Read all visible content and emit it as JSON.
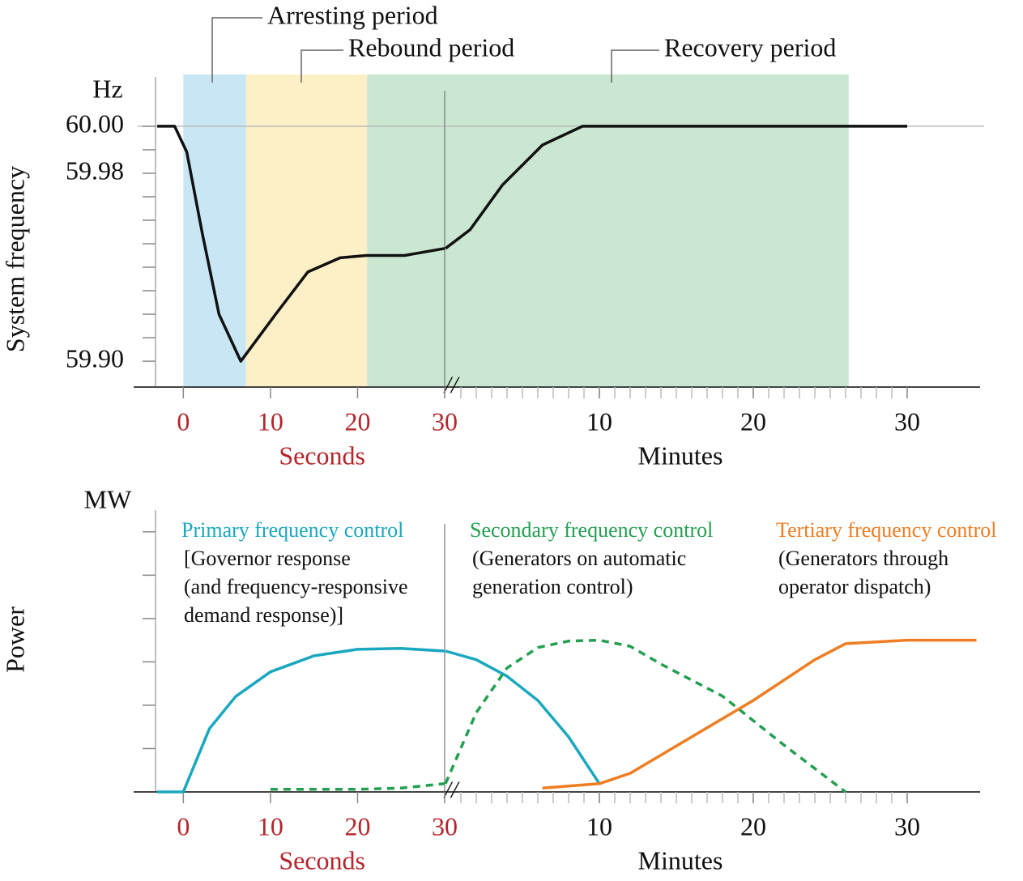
{
  "chart_data": [
    {
      "type": "line",
      "ylabel": "System frequency",
      "yunit": "Hz",
      "ylim": [
        59.889,
        60.021
      ],
      "yticks": [
        {
          "value": 60,
          "label": "60.00"
        },
        {
          "value": 59.98,
          "label": "59.98"
        },
        {
          "value": 59.9,
          "label": "59.90"
        }
      ],
      "yminorticks": [
        59.99,
        59.97,
        59.96,
        59.95,
        59.94,
        59.93,
        59.92,
        59.91
      ],
      "hlines": [
        60
      ],
      "xaxes": [
        {
          "name": "Seconds",
          "color": "#b5252b",
          "xlim": [
            -3.1,
            30
          ],
          "xticks": [
            0,
            10,
            20,
            30
          ]
        },
        {
          "name": "Minutes",
          "color": "#111111",
          "xlim": [
            0,
            35
          ],
          "xticks": [
            10,
            20,
            30
          ],
          "xminorticks": [
            1,
            2,
            3,
            4,
            5,
            6,
            7,
            8,
            9,
            10,
            11,
            12,
            13,
            14,
            15,
            16,
            17,
            18,
            19,
            20,
            21,
            22,
            23,
            24,
            25,
            26,
            27,
            28,
            29
          ]
        }
      ],
      "bands": [
        {
          "label": "Arresting period",
          "color": "#c8e6f4",
          "start": {
            "axis": 0,
            "x": 0
          },
          "end": {
            "axis": 0,
            "x": 7.2
          }
        },
        {
          "label": "Rebound period",
          "color": "#fdefc6",
          "start": {
            "axis": 0,
            "x": 7.2
          },
          "end": {
            "axis": 0,
            "x": 21.1
          }
        },
        {
          "label": "Recovery period",
          "color": "#c9e7d1",
          "start": {
            "axis": 0,
            "x": 21.1
          },
          "end": {
            "axis": 1,
            "x": 26.2
          }
        }
      ],
      "series": [
        {
          "color": "#111111",
          "dashed": false,
          "pieces": [
            {
              "axis": 0,
              "x": [
                -3,
                -1,
                0.4,
                2.2,
                4.1,
                6.6,
                10.6,
                14.3,
                18,
                21,
                25.4,
                30
              ],
              "values": [
                60,
                60,
                59.989,
                59.954,
                59.92,
                59.9,
                59.92,
                59.938,
                59.944,
                59.945,
                59.945,
                59.948
              ]
            },
            {
              "axis": 1,
              "x": [
                0,
                1.6,
                3.7,
                6.3,
                8.9,
                30
              ],
              "values": [
                59.948,
                59.956,
                59.975,
                59.992,
                60,
                60
              ]
            }
          ]
        }
      ]
    },
    {
      "type": "line",
      "ylabel": "Power",
      "yunit": "MW",
      "ylim": [
        0,
        6.5
      ],
      "yminorticks": [
        1,
        2,
        3,
        4,
        5,
        6
      ],
      "xaxes": [
        {
          "name": "Seconds",
          "color": "#b5252b",
          "xlim": [
            -3.1,
            30
          ],
          "xticks": [
            0,
            10,
            20,
            30
          ]
        },
        {
          "name": "Minutes",
          "color": "#111111",
          "xlim": [
            0,
            35
          ],
          "xticks": [
            10,
            20,
            30
          ],
          "xminorticks": [
            1,
            2,
            3,
            4,
            5,
            6,
            7,
            8,
            9,
            10,
            11,
            12,
            13,
            14,
            15,
            16,
            17,
            18,
            19,
            20,
            21,
            22,
            23,
            24,
            25,
            26,
            27,
            28,
            29
          ]
        }
      ],
      "series": [
        {
          "name": "Primary frequency control",
          "color": "#1aa7c0",
          "dashed": false,
          "notes": [
            "[Governor response",
            "(and frequency-responsive",
            "demand response)]"
          ],
          "pieces": [
            {
              "axis": 0,
              "x": [
                -3,
                0,
                3,
                6,
                10,
                15,
                20,
                25,
                30
              ],
              "values": [
                0,
                0,
                1.46,
                2.2,
                2.77,
                3.14,
                3.29,
                3.31,
                3.25
              ]
            },
            {
              "axis": 1,
              "x": [
                0,
                2,
                4,
                6,
                8,
                10
              ],
              "values": [
                3.25,
                3.05,
                2.67,
                2.11,
                1.27,
                0.19
              ]
            }
          ]
        },
        {
          "name": "Secondary frequency control",
          "color": "#22a050",
          "dashed": true,
          "notes": [
            "(Generators on automatic",
            "generation control)"
          ],
          "pieces": [
            {
              "axis": 0,
              "x": [
                10,
                20,
                25,
                30
              ],
              "values": [
                0.06,
                0.06,
                0.09,
                0.19
              ]
            },
            {
              "axis": 1,
              "x": [
                0,
                2,
                4,
                6,
                8,
                10,
                12,
                14,
                18,
                22,
                26
              ],
              "values": [
                0.19,
                1.83,
                2.86,
                3.33,
                3.48,
                3.5,
                3.36,
                2.95,
                2.21,
                1.08,
                0
              ]
            }
          ]
        },
        {
          "name": "Tertiary frequency control",
          "color": "#ef7d22",
          "dashed": false,
          "notes": [
            "(Generators through",
            "operator dispatch)"
          ],
          "pieces": [
            {
              "axis": 1,
              "x": [
                6.3,
                10,
                12,
                16,
                20,
                24,
                26,
                30,
                34.5
              ],
              "values": [
                0.09,
                0.19,
                0.43,
                1.27,
                2.11,
                3.05,
                3.42,
                3.5,
                3.5
              ]
            }
          ]
        }
      ]
    }
  ]
}
